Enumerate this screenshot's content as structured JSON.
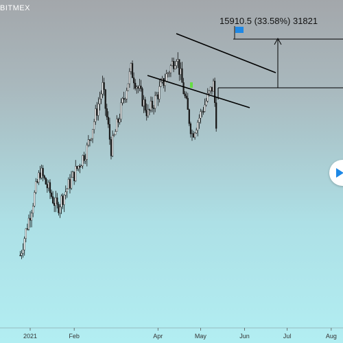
{
  "exchange": "BITMEX",
  "measure_label": "15910.5 (33.58%) 31821",
  "colors": {
    "candle_up": "#ffffff",
    "candle_down": "#1a1a1a",
    "wick": "#111111",
    "channel_line": "#000000",
    "measure_line": "#000000",
    "flag": "#1e88e5",
    "highlight": "#66dd44"
  },
  "icons": {
    "flag": "flag-icon",
    "play": "play-icon"
  },
  "chart_data": {
    "type": "candlestick",
    "x_axis": {
      "ticks": [
        "2021",
        "Feb",
        "Apr",
        "May",
        "Jun",
        "Jul",
        "Aug"
      ]
    },
    "price_path_keypoints": [
      {
        "date": "2020-12-25",
        "close": 23500
      },
      {
        "date": "2021-01-08",
        "close": 40500
      },
      {
        "date": "2021-01-20",
        "close": 33000
      },
      {
        "date": "2021-02-10",
        "close": 45000
      },
      {
        "date": "2021-02-21",
        "close": 57500
      },
      {
        "date": "2021-02-27",
        "close": 45000
      },
      {
        "date": "2021-03-13",
        "close": 61000
      },
      {
        "date": "2021-03-25",
        "close": 52000
      },
      {
        "date": "2021-04-14",
        "close": 64000
      },
      {
        "date": "2021-04-25",
        "close": 48000
      },
      {
        "date": "2021-05-10",
        "close": 58000
      },
      {
        "date": "2021-05-13",
        "close": 47000
      }
    ],
    "annotations": {
      "measure": {
        "change": 15910.5,
        "percent": 33.58,
        "target": 31821
      },
      "channel": "descending parallel channel"
    }
  }
}
